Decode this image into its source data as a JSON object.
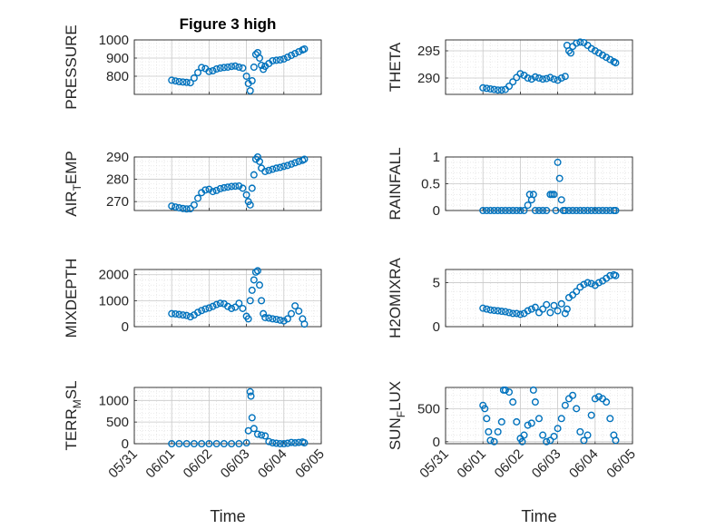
{
  "figure": {
    "title": "Figure 3 high",
    "marker_color": "#0072BD",
    "x_label": "Time",
    "x_ticks": [
      "05/31",
      "06/01",
      "06/02",
      "06/03",
      "06/04",
      "06/05"
    ]
  },
  "chart_data": [
    {
      "type": "scatter",
      "name": "pressure",
      "ylabel": "PRESSURE",
      "ylim": [
        700,
        1000
      ],
      "yticks": [
        800,
        900,
        1000
      ],
      "xlim": [
        0,
        5
      ],
      "grid": true,
      "minor_grid": true,
      "points": [
        [
          1.0,
          778
        ],
        [
          1.1,
          774
        ],
        [
          1.2,
          770
        ],
        [
          1.3,
          768
        ],
        [
          1.4,
          766
        ],
        [
          1.5,
          764
        ],
        [
          1.6,
          790
        ],
        [
          1.7,
          820
        ],
        [
          1.8,
          848
        ],
        [
          1.9,
          842
        ],
        [
          2.0,
          826
        ],
        [
          2.1,
          830
        ],
        [
          2.2,
          840
        ],
        [
          2.3,
          845
        ],
        [
          2.4,
          848
        ],
        [
          2.5,
          850
        ],
        [
          2.6,
          854
        ],
        [
          2.7,
          856
        ],
        [
          2.8,
          850
        ],
        [
          2.9,
          845
        ],
        [
          3.0,
          800
        ],
        [
          3.05,
          760
        ],
        [
          3.1,
          720
        ],
        [
          3.15,
          775
        ],
        [
          3.2,
          850
        ],
        [
          3.25,
          920
        ],
        [
          3.3,
          930
        ],
        [
          3.35,
          900
        ],
        [
          3.4,
          860
        ],
        [
          3.45,
          838
        ],
        [
          3.5,
          855
        ],
        [
          3.6,
          870
        ],
        [
          3.7,
          885
        ],
        [
          3.8,
          888
        ],
        [
          3.9,
          890
        ],
        [
          4.0,
          895
        ],
        [
          4.1,
          905
        ],
        [
          4.2,
          915
        ],
        [
          4.3,
          925
        ],
        [
          4.4,
          935
        ],
        [
          4.5,
          945
        ],
        [
          4.55,
          950
        ]
      ]
    },
    {
      "type": "scatter",
      "name": "theta",
      "ylabel": "THETA",
      "ylim": [
        287,
        297
      ],
      "yticks": [
        290,
        295
      ],
      "xlim": [
        0,
        5
      ],
      "grid": true,
      "minor_grid": true,
      "points": [
        [
          1.0,
          288.2
        ],
        [
          1.1,
          288.1
        ],
        [
          1.2,
          288.0
        ],
        [
          1.3,
          287.9
        ],
        [
          1.4,
          287.8
        ],
        [
          1.5,
          287.8
        ],
        [
          1.6,
          287.9
        ],
        [
          1.7,
          288.5
        ],
        [
          1.8,
          289.3
        ],
        [
          1.9,
          290.1
        ],
        [
          2.0,
          290.8
        ],
        [
          2.1,
          290.5
        ],
        [
          2.2,
          290.0
        ],
        [
          2.3,
          289.8
        ],
        [
          2.4,
          290.2
        ],
        [
          2.5,
          290.0
        ],
        [
          2.6,
          289.8
        ],
        [
          2.7,
          289.9
        ],
        [
          2.8,
          290.1
        ],
        [
          2.9,
          289.8
        ],
        [
          3.0,
          289.6
        ],
        [
          3.1,
          290.0
        ],
        [
          3.2,
          290.3
        ],
        [
          3.25,
          296.0
        ],
        [
          3.3,
          295.0
        ],
        [
          3.35,
          294.6
        ],
        [
          3.4,
          295.8
        ],
        [
          3.5,
          296.4
        ],
        [
          3.6,
          296.6
        ],
        [
          3.7,
          296.5
        ],
        [
          3.8,
          296.0
        ],
        [
          3.9,
          295.4
        ],
        [
          4.0,
          295.0
        ],
        [
          4.1,
          294.6
        ],
        [
          4.2,
          294.2
        ],
        [
          4.3,
          293.8
        ],
        [
          4.4,
          293.4
        ],
        [
          4.5,
          293.0
        ],
        [
          4.55,
          292.8
        ]
      ]
    },
    {
      "type": "scatter",
      "name": "air_temp",
      "ylabel": "AIR_TEMP",
      "ylabel_parts": [
        "AIR",
        "T",
        "EMP"
      ],
      "ylim": [
        266,
        290
      ],
      "yticks": [
        270,
        280,
        290
      ],
      "xlim": [
        0,
        5
      ],
      "grid": true,
      "minor_grid": true,
      "points": [
        [
          1.0,
          268.0
        ],
        [
          1.1,
          267.6
        ],
        [
          1.2,
          267.2
        ],
        [
          1.3,
          266.9
        ],
        [
          1.4,
          266.7
        ],
        [
          1.5,
          266.8
        ],
        [
          1.6,
          268.5
        ],
        [
          1.7,
          271.5
        ],
        [
          1.8,
          274.0
        ],
        [
          1.9,
          275.2
        ],
        [
          2.0,
          275.5
        ],
        [
          2.1,
          274.5
        ],
        [
          2.2,
          275.0
        ],
        [
          2.3,
          275.8
        ],
        [
          2.4,
          276.2
        ],
        [
          2.5,
          276.5
        ],
        [
          2.6,
          276.8
        ],
        [
          2.7,
          276.9
        ],
        [
          2.8,
          277.0
        ],
        [
          2.9,
          276.0
        ],
        [
          3.0,
          273.0
        ],
        [
          3.05,
          270.0
        ],
        [
          3.1,
          268.5
        ],
        [
          3.15,
          276.0
        ],
        [
          3.2,
          282.0
        ],
        [
          3.25,
          289.0
        ],
        [
          3.3,
          290.0
        ],
        [
          3.35,
          288.0
        ],
        [
          3.4,
          285.0
        ],
        [
          3.5,
          283.5
        ],
        [
          3.6,
          284.0
        ],
        [
          3.7,
          284.5
        ],
        [
          3.8,
          285.0
        ],
        [
          3.9,
          285.3
        ],
        [
          4.0,
          285.8
        ],
        [
          4.1,
          286.2
        ],
        [
          4.2,
          286.8
        ],
        [
          4.3,
          287.4
        ],
        [
          4.4,
          288.0
        ],
        [
          4.5,
          288.5
        ],
        [
          4.55,
          289.0
        ]
      ]
    },
    {
      "type": "scatter",
      "name": "rainfall",
      "ylabel": "RAINFALL",
      "ylim": [
        0,
        1
      ],
      "yticks": [
        0,
        0.5,
        1
      ],
      "xlim": [
        0,
        5
      ],
      "grid": true,
      "minor_grid": true,
      "points": [
        [
          1.0,
          0
        ],
        [
          1.1,
          0
        ],
        [
          1.2,
          0
        ],
        [
          1.3,
          0
        ],
        [
          1.4,
          0
        ],
        [
          1.5,
          0
        ],
        [
          1.6,
          0
        ],
        [
          1.7,
          0
        ],
        [
          1.8,
          0
        ],
        [
          1.9,
          0
        ],
        [
          2.0,
          0
        ],
        [
          2.1,
          0
        ],
        [
          2.2,
          0.1
        ],
        [
          2.25,
          0.3
        ],
        [
          2.3,
          0.2
        ],
        [
          2.35,
          0.3
        ],
        [
          2.4,
          0
        ],
        [
          2.5,
          0
        ],
        [
          2.6,
          0
        ],
        [
          2.7,
          0
        ],
        [
          2.8,
          0.3
        ],
        [
          2.85,
          0.3
        ],
        [
          2.9,
          0.3
        ],
        [
          2.95,
          0
        ],
        [
          3.0,
          0.9
        ],
        [
          3.05,
          0.6
        ],
        [
          3.1,
          0.2
        ],
        [
          3.15,
          0
        ],
        [
          3.2,
          0
        ],
        [
          3.3,
          0
        ],
        [
          3.4,
          0
        ],
        [
          3.5,
          0
        ],
        [
          3.6,
          0
        ],
        [
          3.7,
          0
        ],
        [
          3.8,
          0
        ],
        [
          3.9,
          0
        ],
        [
          4.0,
          0
        ],
        [
          4.1,
          0
        ],
        [
          4.2,
          0
        ],
        [
          4.3,
          0
        ],
        [
          4.4,
          0
        ],
        [
          4.5,
          0
        ],
        [
          4.55,
          0
        ]
      ]
    },
    {
      "type": "scatter",
      "name": "mixdepth",
      "ylabel": "MIXDEPTH",
      "ylim": [
        0,
        2200
      ],
      "yticks": [
        0,
        1000,
        2000
      ],
      "xlim": [
        0,
        5
      ],
      "grid": true,
      "minor_grid": true,
      "points": [
        [
          1.0,
          500
        ],
        [
          1.1,
          490
        ],
        [
          1.2,
          470
        ],
        [
          1.3,
          450
        ],
        [
          1.4,
          430
        ],
        [
          1.5,
          380
        ],
        [
          1.6,
          450
        ],
        [
          1.7,
          550
        ],
        [
          1.8,
          620
        ],
        [
          1.9,
          680
        ],
        [
          2.0,
          720
        ],
        [
          2.1,
          780
        ],
        [
          2.2,
          850
        ],
        [
          2.3,
          900
        ],
        [
          2.4,
          880
        ],
        [
          2.5,
          780
        ],
        [
          2.6,
          700
        ],
        [
          2.7,
          750
        ],
        [
          2.8,
          900
        ],
        [
          2.9,
          700
        ],
        [
          3.0,
          400
        ],
        [
          3.05,
          300
        ],
        [
          3.1,
          1000
        ],
        [
          3.15,
          1400
        ],
        [
          3.2,
          1800
        ],
        [
          3.25,
          2100
        ],
        [
          3.3,
          2150
        ],
        [
          3.35,
          1600
        ],
        [
          3.4,
          1000
        ],
        [
          3.45,
          500
        ],
        [
          3.5,
          350
        ],
        [
          3.6,
          330
        ],
        [
          3.7,
          300
        ],
        [
          3.8,
          280
        ],
        [
          3.9,
          250
        ],
        [
          4.0,
          220
        ],
        [
          4.1,
          300
        ],
        [
          4.2,
          500
        ],
        [
          4.3,
          800
        ],
        [
          4.4,
          600
        ],
        [
          4.5,
          300
        ],
        [
          4.55,
          100
        ]
      ]
    },
    {
      "type": "scatter",
      "name": "h2omixra",
      "ylabel": "H2OMIXRA",
      "ylim": [
        0,
        6.5
      ],
      "yticks": [
        0,
        5
      ],
      "xlim": [
        0,
        5
      ],
      "grid": true,
      "minor_grid": true,
      "points": [
        [
          1.0,
          2.1
        ],
        [
          1.1,
          2.0
        ],
        [
          1.2,
          1.9
        ],
        [
          1.3,
          1.85
        ],
        [
          1.4,
          1.8
        ],
        [
          1.5,
          1.75
        ],
        [
          1.6,
          1.7
        ],
        [
          1.7,
          1.6
        ],
        [
          1.8,
          1.5
        ],
        [
          1.9,
          1.5
        ],
        [
          2.0,
          1.4
        ],
        [
          2.1,
          1.5
        ],
        [
          2.2,
          1.8
        ],
        [
          2.3,
          2.0
        ],
        [
          2.4,
          2.2
        ],
        [
          2.5,
          1.6
        ],
        [
          2.6,
          2.0
        ],
        [
          2.7,
          2.5
        ],
        [
          2.8,
          1.6
        ],
        [
          2.9,
          2.4
        ],
        [
          3.0,
          1.8
        ],
        [
          3.1,
          2.6
        ],
        [
          3.2,
          1.5
        ],
        [
          3.25,
          2.0
        ],
        [
          3.3,
          3.3
        ],
        [
          3.4,
          3.6
        ],
        [
          3.5,
          4.0
        ],
        [
          3.6,
          4.5
        ],
        [
          3.7,
          4.8
        ],
        [
          3.8,
          5.0
        ],
        [
          3.9,
          4.9
        ],
        [
          4.0,
          4.7
        ],
        [
          4.1,
          5.0
        ],
        [
          4.2,
          5.2
        ],
        [
          4.3,
          5.5
        ],
        [
          4.4,
          5.8
        ],
        [
          4.5,
          5.9
        ],
        [
          4.55,
          5.8
        ]
      ]
    },
    {
      "type": "scatter",
      "name": "terr_msl",
      "ylabel": "TERR_MSL",
      "ylabel_parts": [
        "TERR",
        "M",
        "SL"
      ],
      "ylim": [
        0,
        1300
      ],
      "yticks": [
        0,
        500,
        1000
      ],
      "xlim": [
        0,
        5
      ],
      "grid": true,
      "minor_grid": true,
      "points": [
        [
          1.0,
          0
        ],
        [
          1.2,
          0
        ],
        [
          1.4,
          0
        ],
        [
          1.6,
          0
        ],
        [
          1.8,
          0
        ],
        [
          2.0,
          0
        ],
        [
          2.2,
          0
        ],
        [
          2.4,
          0
        ],
        [
          2.6,
          0
        ],
        [
          2.8,
          0
        ],
        [
          3.0,
          20
        ],
        [
          3.05,
          300
        ],
        [
          3.1,
          1200
        ],
        [
          3.12,
          1100
        ],
        [
          3.15,
          600
        ],
        [
          3.2,
          350
        ],
        [
          3.3,
          220
        ],
        [
          3.4,
          200
        ],
        [
          3.5,
          180
        ],
        [
          3.6,
          50
        ],
        [
          3.7,
          20
        ],
        [
          3.8,
          10
        ],
        [
          3.9,
          0
        ],
        [
          4.0,
          0
        ],
        [
          4.1,
          10
        ],
        [
          4.2,
          30
        ],
        [
          4.3,
          20
        ],
        [
          4.4,
          30
        ],
        [
          4.5,
          40
        ],
        [
          4.55,
          20
        ]
      ]
    },
    {
      "type": "scatter",
      "name": "sun_flux",
      "ylabel": "SUN_FLUX",
      "ylabel_parts": [
        "SUN",
        "F",
        "LUX"
      ],
      "ylim": [
        -30,
        820
      ],
      "yticks": [
        0,
        500
      ],
      "xlim": [
        0,
        5
      ],
      "grid": true,
      "minor_grid": true,
      "points": [
        [
          1.0,
          550
        ],
        [
          1.05,
          500
        ],
        [
          1.1,
          350
        ],
        [
          1.15,
          150
        ],
        [
          1.2,
          20
        ],
        [
          1.3,
          0
        ],
        [
          1.4,
          150
        ],
        [
          1.5,
          300
        ],
        [
          1.55,
          780
        ],
        [
          1.6,
          780
        ],
        [
          1.7,
          750
        ],
        [
          1.8,
          600
        ],
        [
          1.9,
          300
        ],
        [
          2.0,
          50
        ],
        [
          2.05,
          0
        ],
        [
          2.1,
          100
        ],
        [
          2.2,
          250
        ],
        [
          2.3,
          280
        ],
        [
          2.35,
          780
        ],
        [
          2.4,
          600
        ],
        [
          2.5,
          350
        ],
        [
          2.6,
          100
        ],
        [
          2.7,
          0
        ],
        [
          2.8,
          20
        ],
        [
          2.9,
          80
        ],
        [
          3.0,
          200
        ],
        [
          3.1,
          350
        ],
        [
          3.2,
          550
        ],
        [
          3.3,
          650
        ],
        [
          3.4,
          700
        ],
        [
          3.5,
          500
        ],
        [
          3.6,
          150
        ],
        [
          3.7,
          20
        ],
        [
          3.8,
          100
        ],
        [
          3.9,
          400
        ],
        [
          4.0,
          650
        ],
        [
          4.1,
          680
        ],
        [
          4.2,
          650
        ],
        [
          4.3,
          600
        ],
        [
          4.4,
          350
        ],
        [
          4.5,
          100
        ],
        [
          4.55,
          20
        ]
      ]
    }
  ]
}
